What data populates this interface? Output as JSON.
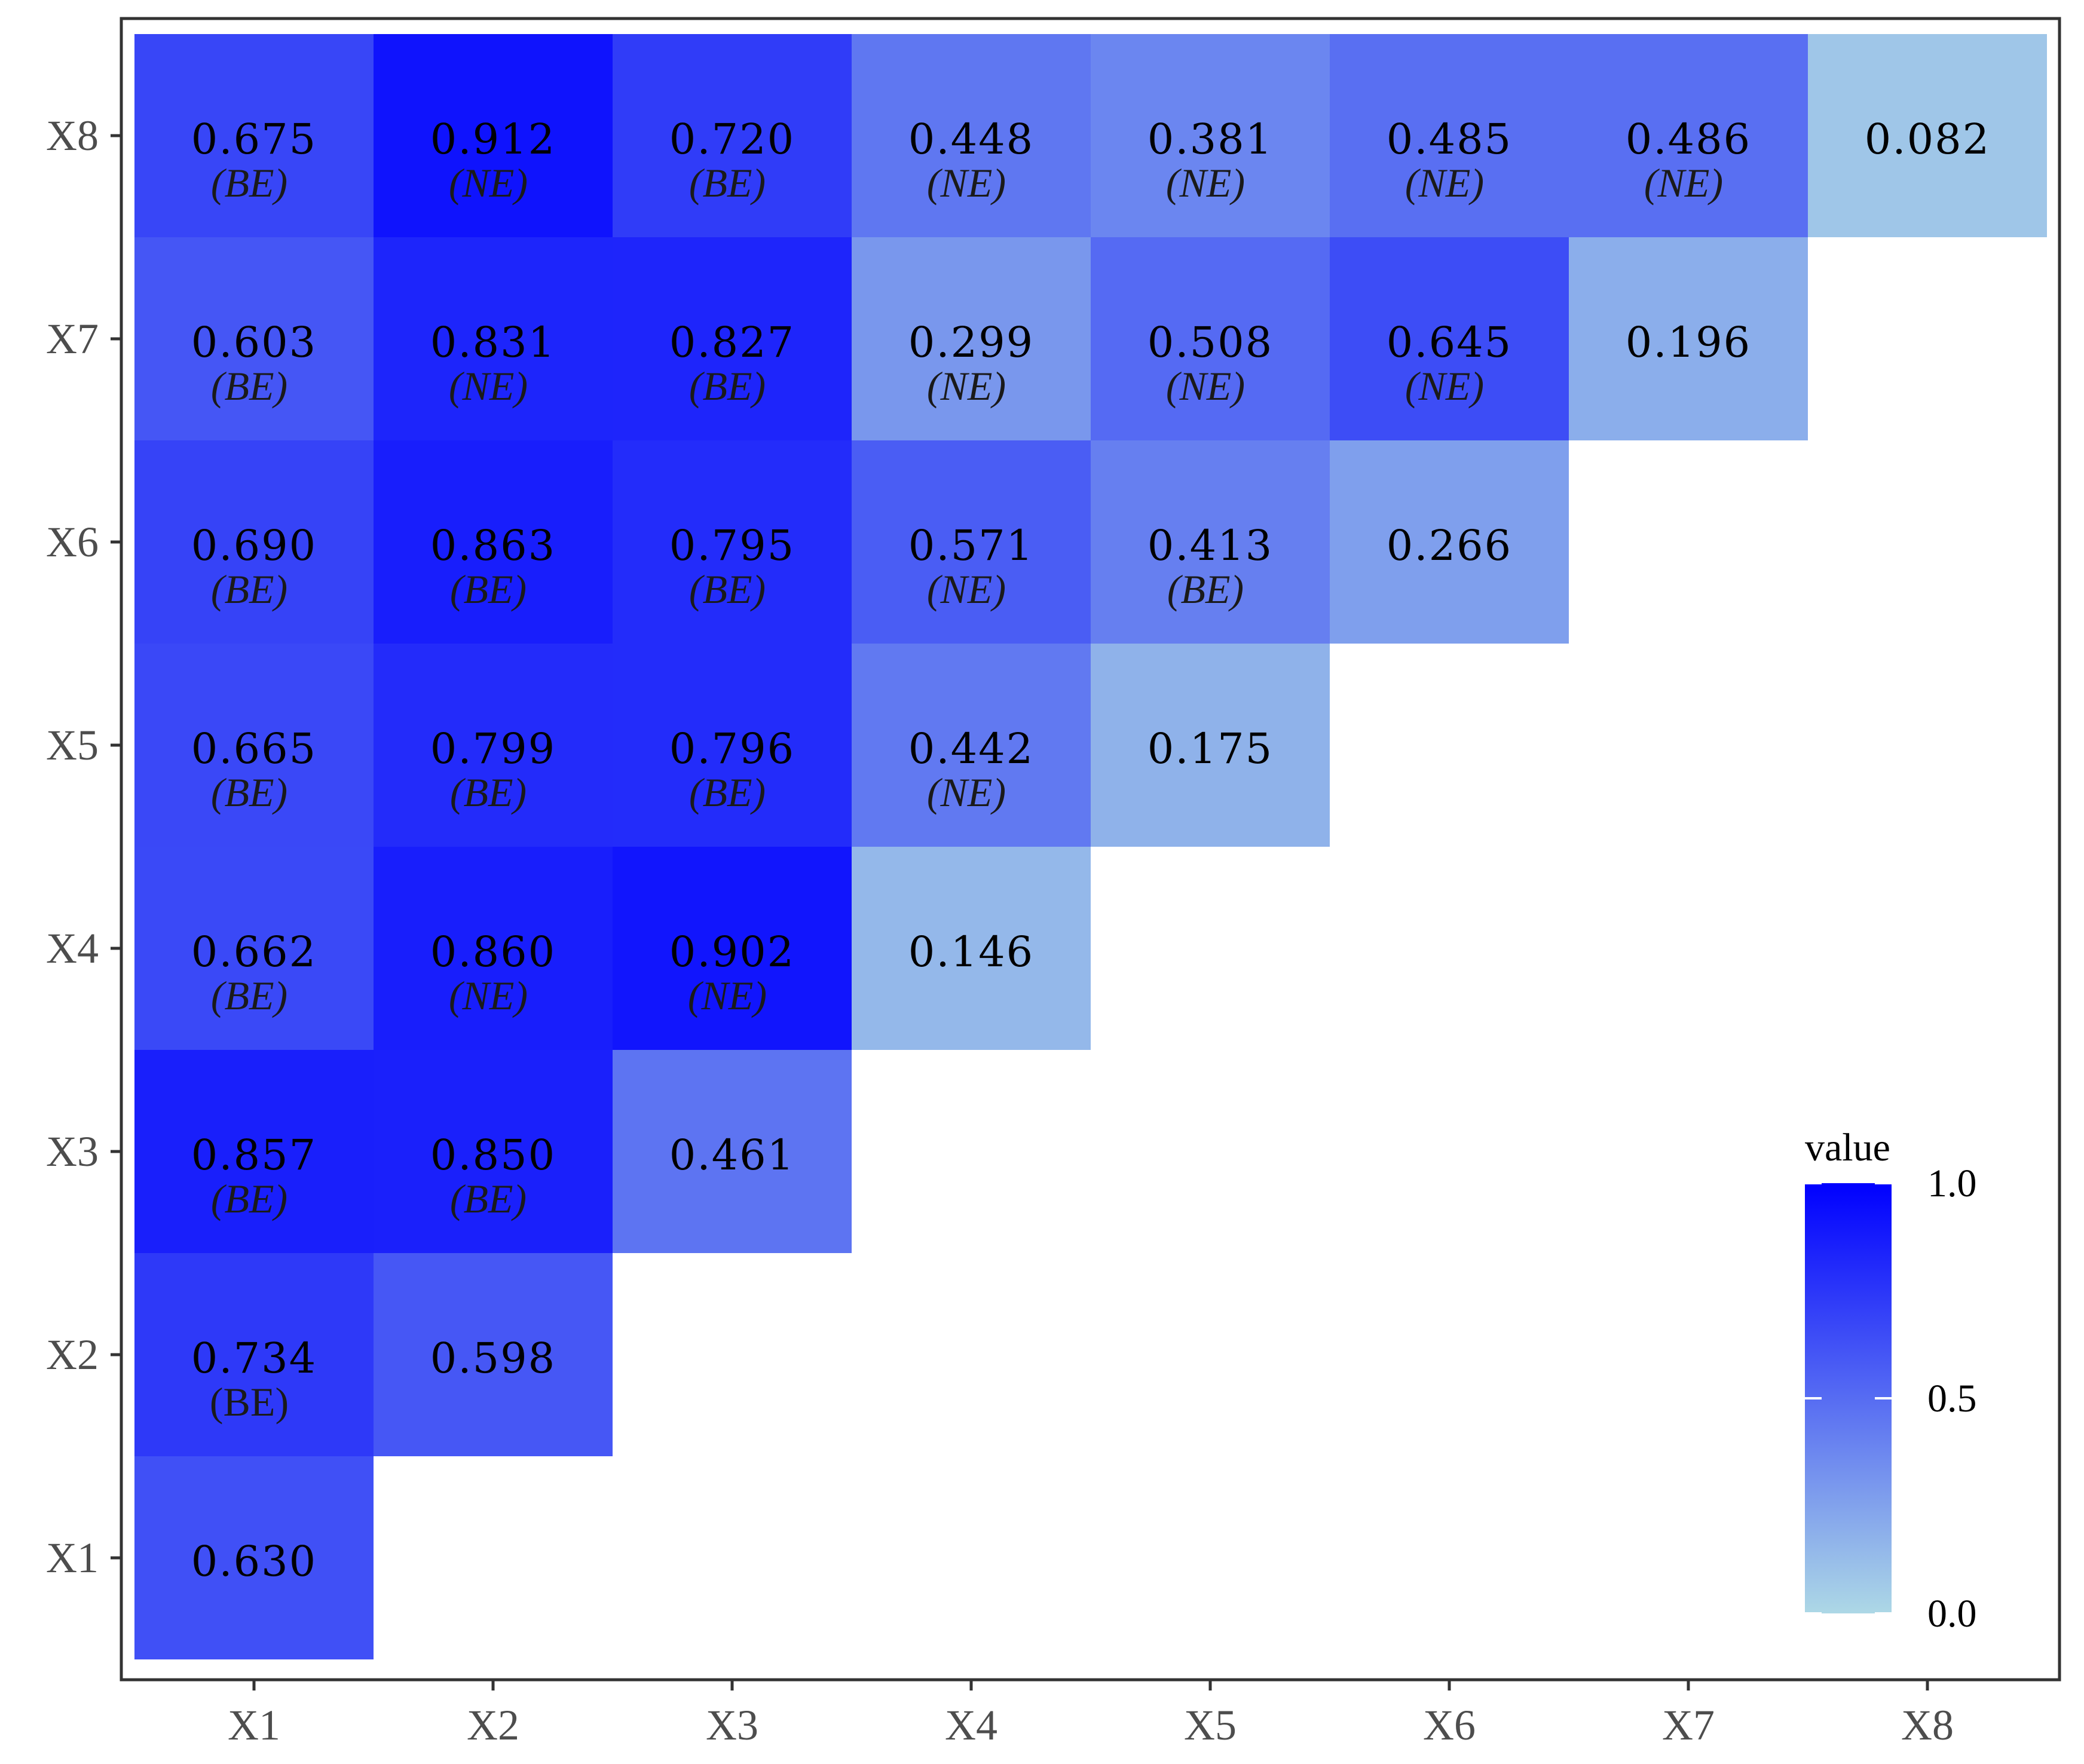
{
  "chart_data": {
    "type": "heatmap",
    "title": "",
    "xlabel": "",
    "ylabel": "",
    "x_categories": [
      "X1",
      "X2",
      "X3",
      "X4",
      "X5",
      "X6",
      "X7",
      "X8"
    ],
    "y_categories": [
      "X1",
      "X2",
      "X3",
      "X4",
      "X5",
      "X6",
      "X7",
      "X8"
    ],
    "cells": [
      {
        "x": "X1",
        "y": "X1",
        "value": 0.63,
        "label": "0.630",
        "tag": ""
      },
      {
        "x": "X1",
        "y": "X2",
        "value": 0.734,
        "label": "0.734",
        "tag": "(BE)",
        "tag_upright": true
      },
      {
        "x": "X2",
        "y": "X2",
        "value": 0.598,
        "label": "0.598",
        "tag": ""
      },
      {
        "x": "X1",
        "y": "X3",
        "value": 0.857,
        "label": "0.857",
        "tag": "(BE)"
      },
      {
        "x": "X2",
        "y": "X3",
        "value": 0.85,
        "label": "0.850",
        "tag": "(BE)"
      },
      {
        "x": "X3",
        "y": "X3",
        "value": 0.461,
        "label": "0.461",
        "tag": ""
      },
      {
        "x": "X1",
        "y": "X4",
        "value": 0.662,
        "label": "0.662",
        "tag": "(BE)"
      },
      {
        "x": "X2",
        "y": "X4",
        "value": 0.86,
        "label": "0.860",
        "tag": "(NE)"
      },
      {
        "x": "X3",
        "y": "X4",
        "value": 0.902,
        "label": "0.902",
        "tag": "(NE)"
      },
      {
        "x": "X4",
        "y": "X4",
        "value": 0.146,
        "label": "0.146",
        "tag": ""
      },
      {
        "x": "X1",
        "y": "X5",
        "value": 0.665,
        "label": "0.665",
        "tag": "(BE)"
      },
      {
        "x": "X2",
        "y": "X5",
        "value": 0.799,
        "label": "0.799",
        "tag": "(BE)"
      },
      {
        "x": "X3",
        "y": "X5",
        "value": 0.796,
        "label": "0.796",
        "tag": "(BE)"
      },
      {
        "x": "X4",
        "y": "X5",
        "value": 0.442,
        "label": "0.442",
        "tag": "(NE)"
      },
      {
        "x": "X5",
        "y": "X5",
        "value": 0.175,
        "label": "0.175",
        "tag": ""
      },
      {
        "x": "X1",
        "y": "X6",
        "value": 0.69,
        "label": "0.690",
        "tag": "(BE)"
      },
      {
        "x": "X2",
        "y": "X6",
        "value": 0.863,
        "label": "0.863",
        "tag": "(BE)"
      },
      {
        "x": "X3",
        "y": "X6",
        "value": 0.795,
        "label": "0.795",
        "tag": "(BE)"
      },
      {
        "x": "X4",
        "y": "X6",
        "value": 0.571,
        "label": "0.571",
        "tag": "(NE)"
      },
      {
        "x": "X5",
        "y": "X6",
        "value": 0.413,
        "label": "0.413",
        "tag": "(BE)"
      },
      {
        "x": "X6",
        "y": "X6",
        "value": 0.266,
        "label": "0.266",
        "tag": ""
      },
      {
        "x": "X1",
        "y": "X7",
        "value": 0.603,
        "label": "0.603",
        "tag": "(BE)"
      },
      {
        "x": "X2",
        "y": "X7",
        "value": 0.831,
        "label": "0.831",
        "tag": "(NE)"
      },
      {
        "x": "X3",
        "y": "X7",
        "value": 0.827,
        "label": "0.827",
        "tag": "(BE)"
      },
      {
        "x": "X4",
        "y": "X7",
        "value": 0.299,
        "label": "0.299",
        "tag": "(NE)"
      },
      {
        "x": "X5",
        "y": "X7",
        "value": 0.508,
        "label": "0.508",
        "tag": "(NE)"
      },
      {
        "x": "X6",
        "y": "X7",
        "value": 0.645,
        "label": "0.645",
        "tag": "(NE)"
      },
      {
        "x": "X7",
        "y": "X7",
        "value": 0.196,
        "label": "0.196",
        "tag": ""
      },
      {
        "x": "X1",
        "y": "X8",
        "value": 0.675,
        "label": "0.675",
        "tag": "(BE)"
      },
      {
        "x": "X2",
        "y": "X8",
        "value": 0.912,
        "label": "0.912",
        "tag": "(NE)"
      },
      {
        "x": "X3",
        "y": "X8",
        "value": 0.72,
        "label": "0.720",
        "tag": "(BE)"
      },
      {
        "x": "X4",
        "y": "X8",
        "value": 0.448,
        "label": "0.448",
        "tag": "(NE)"
      },
      {
        "x": "X5",
        "y": "X8",
        "value": 0.381,
        "label": "0.381",
        "tag": "(NE)"
      },
      {
        "x": "X6",
        "y": "X8",
        "value": 0.485,
        "label": "0.485",
        "tag": "(NE)"
      },
      {
        "x": "X7",
        "y": "X8",
        "value": 0.486,
        "label": "0.486",
        "tag": "(NE)"
      },
      {
        "x": "X8",
        "y": "X8",
        "value": 0.082,
        "label": "0.082",
        "tag": ""
      }
    ],
    "legend": {
      "title": "value",
      "position": "bottom-right",
      "range": [
        0.0,
        1.0
      ],
      "ticks": [
        {
          "value": 1.0,
          "label": "1.0"
        },
        {
          "value": 0.5,
          "label": "0.5"
        },
        {
          "value": 0.0,
          "label": "0.0"
        }
      ]
    },
    "color_scale": {
      "low": "#ADD8E6",
      "high": "#0000FF"
    },
    "grid": false
  }
}
